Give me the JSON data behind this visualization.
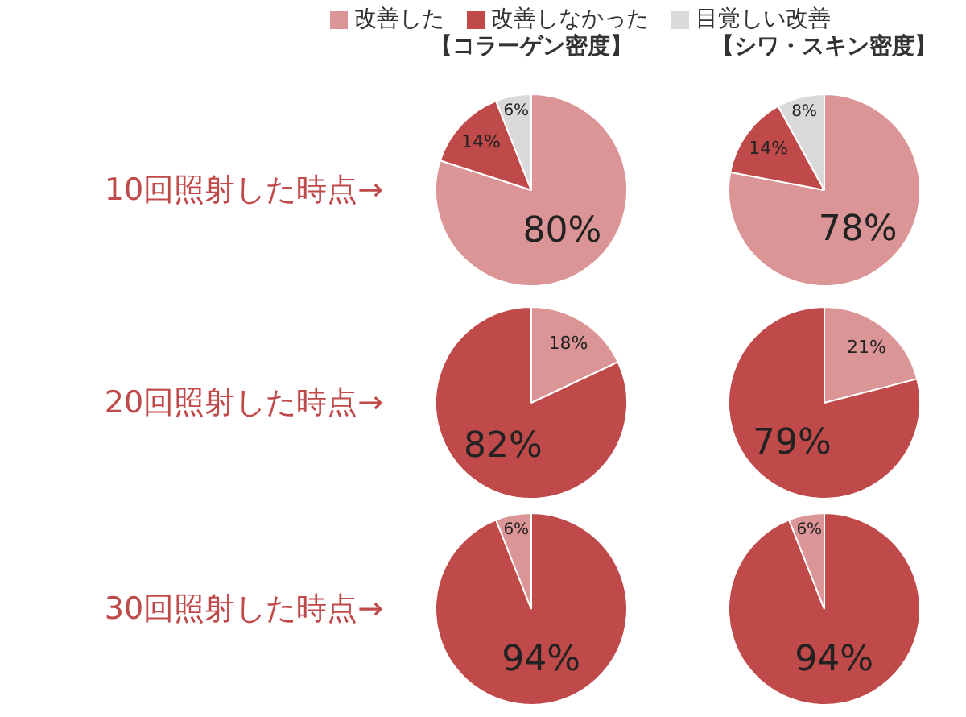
{
  "chart_data": [
    {
      "type": "pie",
      "title": "【コラーゲン密度】",
      "ylabel": "10回照射した時点→",
      "legend": "top",
      "categories": [
        "改善した",
        "改善しなかった",
        "目覚しい改善"
      ],
      "values": [
        80,
        14,
        6
      ],
      "colors": [
        "#dc9596",
        "#c0494a",
        "#d9d9d9"
      ],
      "value_labels": [
        "80%",
        "14%",
        "6%"
      ]
    },
    {
      "type": "pie",
      "title": "【シワ・スキン密度】",
      "categories": [
        null,
        null,
        null
      ],
      "values": [
        78,
        14,
        8
      ],
      "colors": [
        "#dc9596",
        "#c0494a",
        "#d9d9d9"
      ],
      "value_labels": [
        "78%",
        "14%",
        "8%"
      ]
    },
    {
      "type": "pie",
      "ylabel": "20回照射した時点→",
      "categories": [
        null,
        null
      ],
      "values": [
        18,
        82
      ],
      "colors": [
        "#dc9596",
        "#c0494a"
      ],
      "value_labels": [
        "18%",
        "82%"
      ]
    },
    {
      "type": "pie",
      "categories": [
        null,
        null
      ],
      "values": [
        21,
        79
      ],
      "colors": [
        "#dc9596",
        "#c0494a"
      ],
      "value_labels": [
        "21%",
        "79%"
      ]
    },
    {
      "type": "pie",
      "ylabel": "30回照射した時点→",
      "categories": [
        null,
        null
      ],
      "values": [
        94,
        6
      ],
      "colors": [
        "#c0494a",
        "#dc9596"
      ],
      "value_labels": [
        "94%",
        "6%"
      ]
    },
    {
      "type": "pie",
      "categories": [
        null,
        null
      ],
      "values": [
        94,
        6
      ],
      "colors": [
        "#c0494a",
        "#dc9596"
      ],
      "value_labels": [
        "94%",
        "6%"
      ]
    }
  ]
}
